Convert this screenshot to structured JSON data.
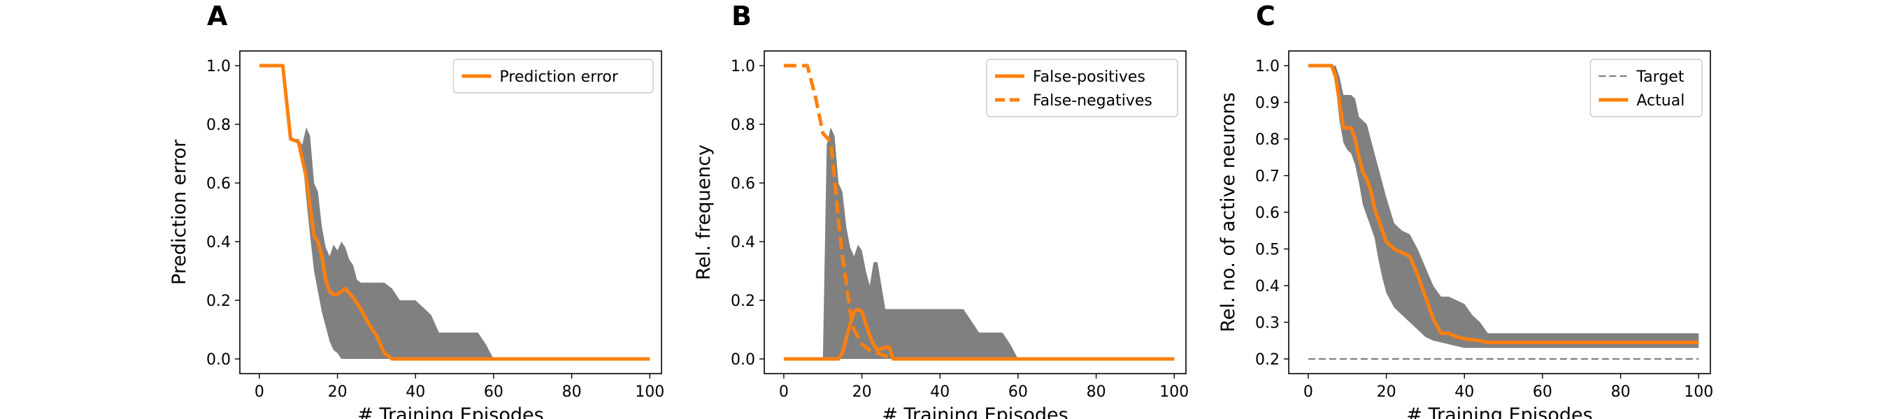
{
  "figure": {
    "panel_letters": [
      "A",
      "B",
      "C"
    ],
    "colors": {
      "line": "#ff7f0e",
      "band": "#808080",
      "target": "#808080"
    }
  },
  "chart_data": [
    {
      "type": "line",
      "panel": "A",
      "xlabel": "# Training Episodes",
      "ylabel": "Prediction error",
      "xlim": [
        -5,
        103
      ],
      "ylim": [
        -0.05,
        1.05
      ],
      "xticks": [
        0,
        20,
        40,
        60,
        80,
        100
      ],
      "yticks": [
        0.0,
        0.2,
        0.4,
        0.6,
        0.8,
        1.0
      ],
      "ytick_format": 1,
      "legend": "top-right",
      "series": [
        {
          "name": "Prediction error",
          "style": "solid",
          "x": [
            0,
            6,
            8,
            10,
            12,
            14,
            15,
            16,
            17,
            18,
            19,
            20,
            22,
            24,
            26,
            28,
            30,
            32,
            34,
            40,
            60,
            100
          ],
          "y": [
            1.0,
            1.0,
            0.75,
            0.74,
            0.62,
            0.42,
            0.4,
            0.35,
            0.27,
            0.23,
            0.22,
            0.22,
            0.24,
            0.21,
            0.17,
            0.12,
            0.08,
            0.02,
            0.0,
            0.0,
            0.0,
            0.0
          ]
        }
      ],
      "band": {
        "x": [
          0,
          6,
          8,
          10,
          11,
          12,
          13,
          14,
          15,
          16,
          17,
          18,
          19,
          20,
          21,
          22,
          23,
          24,
          25,
          26,
          28,
          30,
          32,
          34,
          36,
          40,
          44,
          46,
          50,
          56,
          58,
          60,
          100
        ],
        "upper": [
          1.0,
          1.0,
          0.75,
          0.75,
          0.73,
          0.79,
          0.76,
          0.6,
          0.57,
          0.45,
          0.38,
          0.35,
          0.39,
          0.37,
          0.4,
          0.38,
          0.34,
          0.32,
          0.27,
          0.26,
          0.26,
          0.26,
          0.26,
          0.24,
          0.2,
          0.2,
          0.15,
          0.09,
          0.09,
          0.09,
          0.05,
          0.0,
          0.0
        ],
        "lower": [
          1.0,
          1.0,
          0.75,
          0.74,
          0.69,
          0.55,
          0.42,
          0.3,
          0.23,
          0.16,
          0.11,
          0.06,
          0.03,
          0.02,
          0.0,
          0.0,
          0.0,
          0.0,
          0.0,
          0.0,
          0.0,
          0.0,
          0.0,
          0.0,
          0.0,
          0.0,
          0.0,
          0.0,
          0.0,
          0.0,
          0.0,
          0.0,
          0.0
        ]
      }
    },
    {
      "type": "line",
      "panel": "B",
      "xlabel": "# Training Episodes",
      "ylabel": "Rel. frequency",
      "xlim": [
        -5,
        103
      ],
      "ylim": [
        -0.05,
        1.05
      ],
      "xticks": [
        0,
        20,
        40,
        60,
        80,
        100
      ],
      "yticks": [
        0.0,
        0.2,
        0.4,
        0.6,
        0.8,
        1.0
      ],
      "ytick_format": 1,
      "legend": "top-right",
      "series": [
        {
          "name": "False-positives",
          "style": "solid",
          "x": [
            0,
            14,
            15,
            16,
            17,
            18,
            19,
            20,
            21,
            22,
            23,
            24,
            26,
            27,
            28,
            29,
            30,
            100
          ],
          "y": [
            0.0,
            0.0,
            0.02,
            0.07,
            0.12,
            0.16,
            0.17,
            0.16,
            0.12,
            0.08,
            0.05,
            0.03,
            0.04,
            0.04,
            0.0,
            0.0,
            0.0,
            0.0
          ]
        },
        {
          "name": "False-negatives",
          "style": "dashed",
          "x": [
            0,
            6,
            8,
            10,
            12,
            13,
            14,
            15,
            16,
            17,
            18,
            20,
            22,
            24,
            26,
            28,
            100
          ],
          "y": [
            1.0,
            1.0,
            0.9,
            0.77,
            0.74,
            0.62,
            0.47,
            0.35,
            0.26,
            0.16,
            0.1,
            0.05,
            0.03,
            0.02,
            0.01,
            0.0,
            0.0
          ]
        }
      ],
      "band": {
        "x": [
          0,
          10,
          11,
          12,
          13,
          14,
          15,
          16,
          17,
          18,
          19,
          20,
          21,
          22,
          23,
          24,
          25,
          26,
          27,
          28,
          30,
          36,
          40,
          46,
          50,
          56,
          58,
          60,
          100
        ],
        "upper": [
          0.0,
          0.0,
          0.73,
          0.79,
          0.76,
          0.6,
          0.57,
          0.45,
          0.38,
          0.35,
          0.39,
          0.37,
          0.3,
          0.25,
          0.33,
          0.33,
          0.25,
          0.17,
          0.17,
          0.17,
          0.17,
          0.17,
          0.17,
          0.17,
          0.09,
          0.09,
          0.05,
          0.0,
          0.0
        ],
        "lower": [
          0.0,
          0.0,
          0.0,
          0.0,
          0.0,
          0.0,
          0.0,
          0.0,
          0.0,
          0.0,
          0.0,
          0.0,
          0.0,
          0.0,
          0.0,
          0.0,
          0.0,
          0.0,
          0.0,
          0.0,
          0.0,
          0.0,
          0.0,
          0.0,
          0.0,
          0.0,
          0.0,
          0.0,
          0.0
        ]
      }
    },
    {
      "type": "line",
      "panel": "C",
      "xlabel": "# Training Episodes",
      "ylabel": "Rel. no. of active neurons",
      "xlim": [
        -5,
        103
      ],
      "ylim": [
        0.16,
        1.04
      ],
      "xticks": [
        0,
        20,
        40,
        60,
        80,
        100
      ],
      "yticks": [
        0.2,
        0.3,
        0.4,
        0.5,
        0.6,
        0.7,
        0.8,
        0.9,
        1.0
      ],
      "ytick_format": 1,
      "legend": "top-right",
      "series": [
        {
          "name": "Target",
          "style": "dashed-thin",
          "x": [
            0,
            100
          ],
          "y": [
            0.2,
            0.2
          ]
        },
        {
          "name": "Actual",
          "style": "solid",
          "x": [
            0,
            6,
            7,
            8,
            9,
            10,
            11,
            12,
            13,
            14,
            15,
            16,
            17,
            18,
            19,
            20,
            22,
            24,
            26,
            28,
            30,
            32,
            34,
            36,
            38,
            40,
            44,
            46,
            50,
            60,
            80,
            100
          ],
          "y": [
            1.0,
            1.0,
            0.97,
            0.9,
            0.83,
            0.83,
            0.83,
            0.8,
            0.75,
            0.71,
            0.69,
            0.66,
            0.61,
            0.58,
            0.55,
            0.52,
            0.5,
            0.49,
            0.48,
            0.43,
            0.37,
            0.31,
            0.27,
            0.27,
            0.26,
            0.255,
            0.25,
            0.245,
            0.245,
            0.245,
            0.245,
            0.245
          ]
        }
      ],
      "band": {
        "x": [
          0,
          6,
          7,
          8,
          9,
          10,
          11,
          12,
          13,
          14,
          15,
          16,
          17,
          18,
          19,
          20,
          22,
          24,
          26,
          28,
          30,
          32,
          34,
          36,
          38,
          40,
          42,
          44,
          46,
          60,
          80,
          100
        ],
        "upper": [
          1.0,
          1.0,
          1.0,
          0.97,
          0.92,
          0.92,
          0.92,
          0.91,
          0.86,
          0.85,
          0.84,
          0.8,
          0.76,
          0.72,
          0.68,
          0.64,
          0.57,
          0.55,
          0.54,
          0.5,
          0.45,
          0.4,
          0.37,
          0.37,
          0.36,
          0.35,
          0.32,
          0.3,
          0.27,
          0.27,
          0.27,
          0.27
        ],
        "lower": [
          1.0,
          1.0,
          0.95,
          0.85,
          0.79,
          0.77,
          0.76,
          0.73,
          0.68,
          0.62,
          0.59,
          0.56,
          0.53,
          0.47,
          0.42,
          0.38,
          0.34,
          0.32,
          0.3,
          0.28,
          0.26,
          0.25,
          0.245,
          0.24,
          0.235,
          0.23,
          0.23,
          0.23,
          0.23,
          0.23,
          0.23,
          0.23
        ]
      }
    }
  ]
}
